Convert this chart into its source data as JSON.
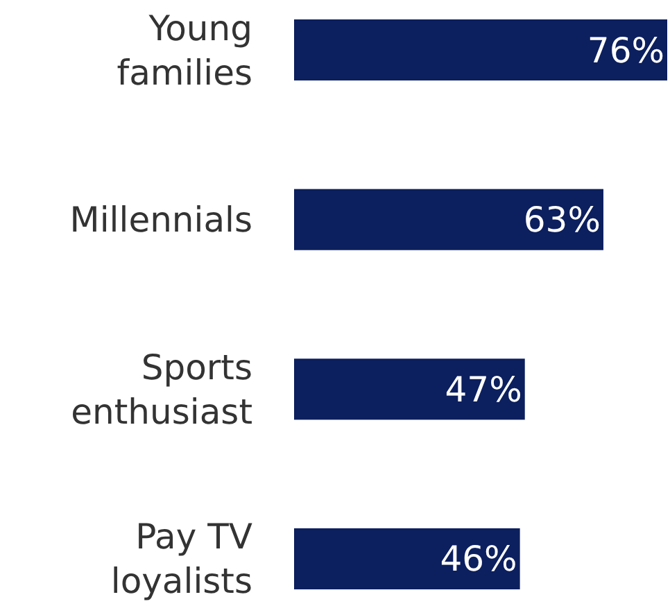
{
  "chart_data": {
    "type": "bar",
    "orientation": "horizontal",
    "categories": [
      "Young families",
      "Millennials",
      "Sports enthusiast",
      "Pay TV loyalists"
    ],
    "values": [
      76,
      63,
      47,
      46
    ],
    "value_labels": [
      "76%",
      "63%",
      "47%",
      "46%"
    ],
    "color": "#0c1f5e",
    "tick_labels": "y"
  }
}
